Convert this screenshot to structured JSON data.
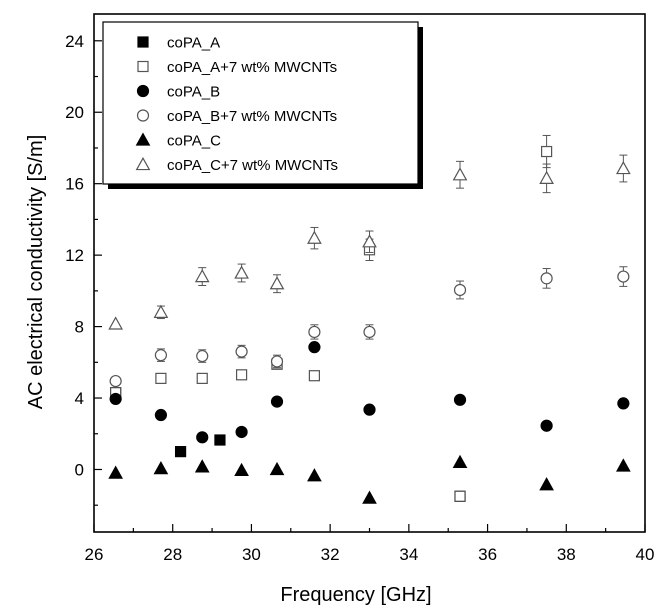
{
  "chart_data": {
    "type": "scatter",
    "xlabel": "Frequency [GHz]",
    "ylabel": "AC electrical conductivity [S/m]",
    "xlim": [
      26,
      40
    ],
    "ylim": [
      -3.5,
      25.5
    ],
    "xticks": [
      26,
      28,
      30,
      32,
      34,
      36,
      38,
      40
    ],
    "yticks": [
      0,
      4,
      8,
      12,
      16,
      20,
      24
    ],
    "grid": false,
    "legend_position": "top-left",
    "series": [
      {
        "name": "coPA_A",
        "marker": "square-filled",
        "points": [
          [
            26.55,
            4.3
          ],
          [
            28.2,
            1.0
          ],
          [
            29.2,
            1.65
          ],
          [
            30.65,
            5.9
          ],
          [
            35.3,
            -1.5
          ]
        ]
      },
      {
        "name": "coPA_A+7 wt% MWCNTs",
        "marker": "square-open",
        "points": [
          [
            26.55,
            4.3
          ],
          [
            27.7,
            5.1
          ],
          [
            28.75,
            5.1
          ],
          [
            29.75,
            5.3
          ],
          [
            30.65,
            5.9
          ],
          [
            31.6,
            5.25
          ],
          [
            33.0,
            12.3
          ],
          [
            35.3,
            -1.5
          ],
          [
            37.5,
            17.8
          ]
        ],
        "errors": [
          0,
          0,
          0,
          0,
          0,
          0,
          0.6,
          0,
          0.9
        ]
      },
      {
        "name": "coPA_B",
        "marker": "circle-filled",
        "points": [
          [
            26.55,
            3.95
          ],
          [
            27.7,
            3.05
          ],
          [
            28.75,
            1.8
          ],
          [
            29.75,
            2.1
          ],
          [
            30.65,
            3.8
          ],
          [
            31.6,
            6.85
          ],
          [
            33.0,
            3.35
          ],
          [
            35.3,
            3.9
          ],
          [
            37.5,
            2.45
          ],
          [
            39.45,
            3.7
          ]
        ]
      },
      {
        "name": "coPA_B+7 wt% MWCNTs",
        "marker": "circle-open",
        "points": [
          [
            26.55,
            4.95
          ],
          [
            27.7,
            6.4
          ],
          [
            28.75,
            6.35
          ],
          [
            29.75,
            6.6
          ],
          [
            30.65,
            6.05
          ],
          [
            31.6,
            7.7
          ],
          [
            33.0,
            7.7
          ],
          [
            35.3,
            10.05
          ],
          [
            37.5,
            10.7
          ],
          [
            39.45,
            10.8
          ]
        ],
        "errors": [
          0,
          0.35,
          0.35,
          0.35,
          0.35,
          0.4,
          0.4,
          0.5,
          0.55,
          0.55
        ]
      },
      {
        "name": "coPA_C",
        "marker": "triangle-filled",
        "points": [
          [
            26.55,
            -0.2
          ],
          [
            27.7,
            0.05
          ],
          [
            28.75,
            0.15
          ],
          [
            29.75,
            -0.05
          ],
          [
            30.65,
            0.0
          ],
          [
            31.6,
            -0.35
          ],
          [
            33.0,
            -1.6
          ],
          [
            35.3,
            0.4
          ],
          [
            37.5,
            -0.85
          ],
          [
            39.45,
            0.2
          ]
        ]
      },
      {
        "name": "coPA_C+7 wt% MWCNTs",
        "marker": "triangle-open",
        "points": [
          [
            26.55,
            8.15
          ],
          [
            27.7,
            8.8
          ],
          [
            28.75,
            10.8
          ],
          [
            29.75,
            11.0
          ],
          [
            30.65,
            10.4
          ],
          [
            31.6,
            12.95
          ],
          [
            33.0,
            12.75
          ],
          [
            35.3,
            16.5
          ],
          [
            37.5,
            16.3
          ],
          [
            39.45,
            16.85
          ]
        ],
        "errors": [
          0,
          0.35,
          0.5,
          0.5,
          0.5,
          0.6,
          0.6,
          0.75,
          0.8,
          0.75
        ]
      }
    ]
  }
}
